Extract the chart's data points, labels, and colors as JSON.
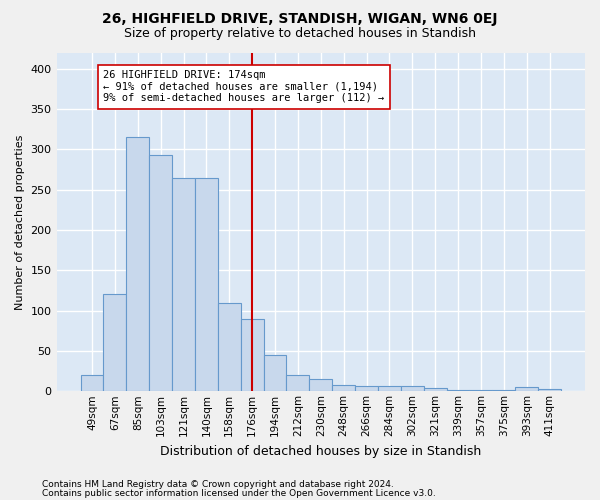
{
  "title1": "26, HIGHFIELD DRIVE, STANDISH, WIGAN, WN6 0EJ",
  "title2": "Size of property relative to detached houses in Standish",
  "xlabel": "Distribution of detached houses by size in Standish",
  "ylabel": "Number of detached properties",
  "footer1": "Contains HM Land Registry data © Crown copyright and database right 2024.",
  "footer2": "Contains public sector information licensed under the Open Government Licence v3.0.",
  "annotation_line1": "26 HIGHFIELD DRIVE: 174sqm",
  "annotation_line2": "← 91% of detached houses are smaller (1,194)",
  "annotation_line3": "9% of semi-detached houses are larger (112) →",
  "bar_labels": [
    "49sqm",
    "67sqm",
    "85sqm",
    "103sqm",
    "121sqm",
    "140sqm",
    "158sqm",
    "176sqm",
    "194sqm",
    "212sqm",
    "230sqm",
    "248sqm",
    "266sqm",
    "284sqm",
    "302sqm",
    "321sqm",
    "339sqm",
    "357sqm",
    "375sqm",
    "393sqm",
    "411sqm"
  ],
  "bar_values": [
    20,
    120,
    315,
    293,
    265,
    265,
    110,
    90,
    45,
    20,
    15,
    8,
    7,
    7,
    6,
    4,
    2,
    2,
    2,
    5,
    3
  ],
  "bar_color": "#c8d8ec",
  "bar_edge_color": "#6699cc",
  "plot_bg_color": "#dce8f5",
  "fig_bg_color": "#f0f0f0",
  "vline_color": "#cc0000",
  "vline_x": 7,
  "ylim": [
    0,
    420
  ],
  "yticks": [
    0,
    50,
    100,
    150,
    200,
    250,
    300,
    350,
    400
  ],
  "grid_color": "#ffffff",
  "ann_box_facecolor": "#ffffff",
  "ann_box_edgecolor": "#cc0000"
}
